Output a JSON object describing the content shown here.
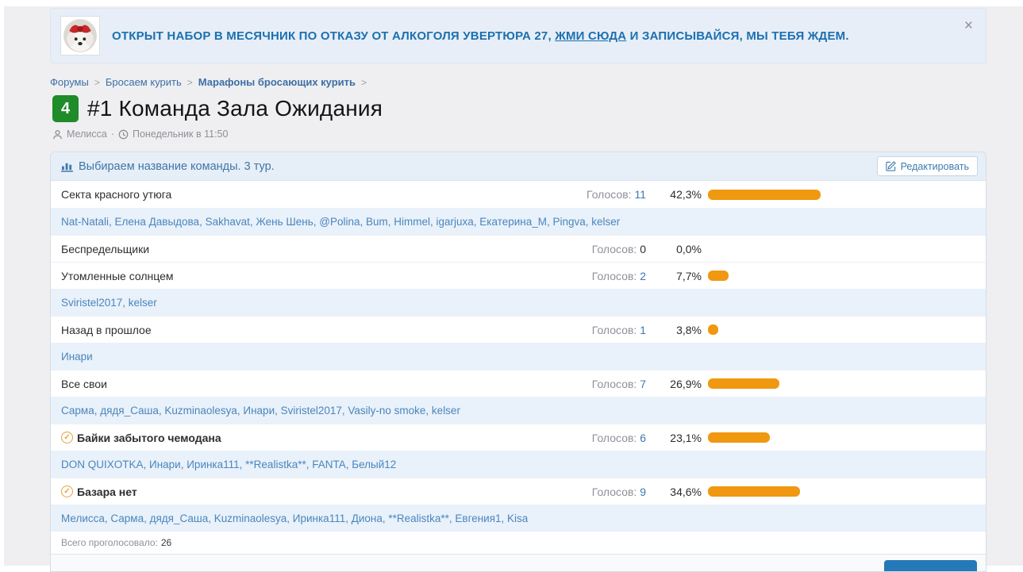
{
  "notice": {
    "text_before": "ОТКРЫТ НАБОР В МЕСЯЧНИК ПО ОТКАЗУ ОТ АЛКОГОЛЯ УВЕРТЮРА 27, ",
    "link_text": "ЖМИ СЮДА",
    "text_after": " И ЗАПИСЫВАЙСЯ, МЫ ТЕБЯ ЖДЕМ.",
    "close_icon": "×",
    "avatar": "dog-with-red-bow"
  },
  "breadcrumb": {
    "items": [
      {
        "label": "Форумы",
        "bold": false
      },
      {
        "label": "Бросаем курить",
        "bold": false
      },
      {
        "label": "Марафоны бросающих курить",
        "bold": true
      }
    ],
    "separator": ">"
  },
  "thread": {
    "unread_badge": "4",
    "title": "#1 Команда Зала Ожидания",
    "author": "Мелисса",
    "meta_separator": "·",
    "date": "Понедельник в 11:50"
  },
  "poll": {
    "title": "Выбираем название команды. 3 тур.",
    "edit_button": "Редактировать",
    "votes_label": "Голосов:",
    "total_label": "Всего проголосовало:",
    "total_votes": "26",
    "bar_color": "#F0980F",
    "check_glyph": "✓",
    "options": [
      {
        "label": "Секта красного утюга",
        "votes": "11",
        "percent_label": "42,3%",
        "percent": 42.3,
        "voted": false,
        "voters": "Nat-Natali, Елена Давыдова, Sakhavat, Жень Шень, @Polina, Bum, Himmel, igarjuxa, Екатерина_М, Pingva, kelser"
      },
      {
        "label": "Беспредельщики",
        "votes": "0",
        "percent_label": "0,0%",
        "percent": 0,
        "voted": false,
        "voters": ""
      },
      {
        "label": "Утомленные солнцем",
        "votes": "2",
        "percent_label": "7,7%",
        "percent": 7.7,
        "voted": false,
        "voters": "Sviristel2017, kelser"
      },
      {
        "label": "Назад в прошлое",
        "votes": "1",
        "percent_label": "3,8%",
        "percent": 3.8,
        "voted": false,
        "voters": "Инари"
      },
      {
        "label": "Все свои",
        "votes": "7",
        "percent_label": "26,9%",
        "percent": 26.9,
        "voted": false,
        "voters": "Сарма, дядя_Саша, Kuzminaolesya, Инари, Sviristel2017, Vasily-no smoke, kelser"
      },
      {
        "label": "Байки забытого чемодана",
        "votes": "6",
        "percent_label": "23,1%",
        "percent": 23.1,
        "voted": true,
        "voters": "DON QUIXOTKA, Инари, Иринка111, **Realistka**, FANTA, Белый12"
      },
      {
        "label": "Базара нет",
        "votes": "9",
        "percent_label": "34,6%",
        "percent": 34.6,
        "voted": true,
        "voters": "Мелисса, Сарма, дядя_Саша, Kuzminaolesya, Иринка111, Диона, **Realistka**, Евгения1, Kisa"
      }
    ]
  }
}
